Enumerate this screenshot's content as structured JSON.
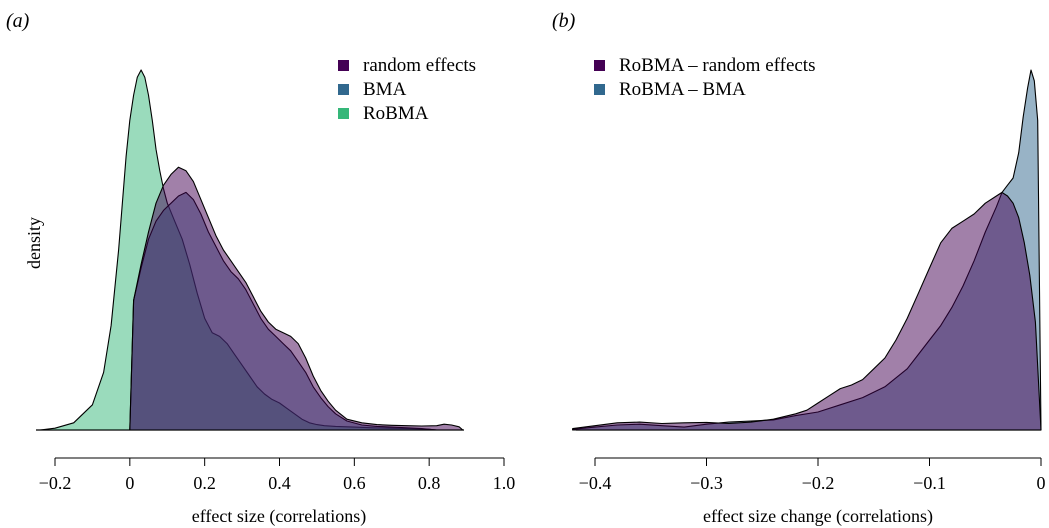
{
  "figure": {
    "panel_a_tag": "(a)",
    "panel_b_tag": "(b)"
  },
  "colors": {
    "random_effects": "#440154",
    "bma": "#31688e",
    "robma": "#35b779"
  },
  "chart_data": [
    {
      "type": "area",
      "panel": "(a)",
      "title": "",
      "xlabel": "effect size (correlations)",
      "ylabel": "density",
      "xlim": [
        -0.24,
        0.92
      ],
      "ylim": [
        0,
        1.05
      ],
      "x_ticks": [
        "−0.2",
        "0",
        "0.2",
        "0.4",
        "0.6",
        "0.8",
        "1.0"
      ],
      "x_tick_values": [
        -0.2,
        0,
        0.2,
        0.4,
        0.6,
        0.8,
        1.0
      ],
      "grid": false,
      "legend_position": "top-right",
      "series": [
        {
          "name": "random effects",
          "color": "#440154",
          "x": [
            0.0,
            0.01,
            0.03,
            0.05,
            0.07,
            0.09,
            0.11,
            0.13,
            0.15,
            0.17,
            0.19,
            0.21,
            0.23,
            0.25,
            0.27,
            0.29,
            0.31,
            0.33,
            0.35,
            0.37,
            0.39,
            0.41,
            0.43,
            0.45,
            0.47,
            0.49,
            0.51,
            0.53,
            0.55,
            0.58,
            0.62,
            0.66,
            0.7,
            0.74,
            0.78,
            0.82,
            0.84,
            0.86,
            0.88,
            0.89
          ],
          "y": [
            0.0,
            0.36,
            0.46,
            0.55,
            0.63,
            0.68,
            0.71,
            0.73,
            0.72,
            0.69,
            0.64,
            0.59,
            0.54,
            0.5,
            0.47,
            0.44,
            0.41,
            0.37,
            0.33,
            0.3,
            0.28,
            0.27,
            0.26,
            0.24,
            0.2,
            0.15,
            0.11,
            0.08,
            0.055,
            0.03,
            0.02,
            0.015,
            0.013,
            0.012,
            0.011,
            0.012,
            0.016,
            0.014,
            0.009,
            0.0
          ]
        },
        {
          "name": "BMA",
          "color": "#31688e",
          "x": [
            0.0,
            0.01,
            0.03,
            0.05,
            0.07,
            0.09,
            0.11,
            0.13,
            0.15,
            0.17,
            0.19,
            0.21,
            0.23,
            0.25,
            0.27,
            0.29,
            0.31,
            0.33,
            0.35,
            0.37,
            0.39,
            0.41,
            0.43,
            0.45,
            0.47,
            0.49,
            0.51,
            0.53,
            0.55,
            0.58,
            0.62,
            0.66,
            0.7,
            0.74,
            0.78,
            0.82
          ],
          "y": [
            0.0,
            0.36,
            0.45,
            0.53,
            0.58,
            0.61,
            0.63,
            0.65,
            0.66,
            0.64,
            0.6,
            0.55,
            0.51,
            0.47,
            0.44,
            0.42,
            0.39,
            0.35,
            0.31,
            0.28,
            0.26,
            0.24,
            0.22,
            0.19,
            0.16,
            0.12,
            0.09,
            0.065,
            0.045,
            0.025,
            0.014,
            0.01,
            0.008,
            0.006,
            0.004,
            0.0
          ]
        },
        {
          "name": "RoBMA",
          "color": "#35b779",
          "x": [
            -0.24,
            -0.2,
            -0.15,
            -0.1,
            -0.07,
            -0.05,
            -0.03,
            -0.01,
            0.0,
            0.01,
            0.02,
            0.03,
            0.04,
            0.05,
            0.06,
            0.07,
            0.08,
            0.09,
            0.1,
            0.12,
            0.14,
            0.16,
            0.18,
            0.2,
            0.22,
            0.24,
            0.26,
            0.28,
            0.3,
            0.32,
            0.34,
            0.36,
            0.38,
            0.4,
            0.42,
            0.44,
            0.46,
            0.48,
            0.5,
            0.52,
            0.55,
            0.6,
            0.65,
            0.7,
            0.75,
            0.8,
            0.82
          ],
          "y": [
            0.0,
            0.005,
            0.02,
            0.07,
            0.16,
            0.29,
            0.5,
            0.76,
            0.86,
            0.93,
            0.98,
            1.0,
            0.98,
            0.93,
            0.86,
            0.78,
            0.72,
            0.67,
            0.63,
            0.58,
            0.53,
            0.46,
            0.38,
            0.31,
            0.27,
            0.26,
            0.24,
            0.21,
            0.18,
            0.15,
            0.12,
            0.1,
            0.085,
            0.075,
            0.06,
            0.045,
            0.03,
            0.02,
            0.015,
            0.012,
            0.01,
            0.008,
            0.006,
            0.005,
            0.004,
            0.002,
            0.0
          ]
        }
      ]
    },
    {
      "type": "area",
      "panel": "(b)",
      "title": "",
      "xlabel": "effect size change (correlations)",
      "ylabel": "",
      "xlim": [
        -0.42,
        0.0
      ],
      "ylim": [
        0,
        1.05
      ],
      "x_ticks": [
        "−0.4",
        "−0.3",
        "−0.2",
        "−0.1",
        "0"
      ],
      "x_tick_values": [
        -0.4,
        -0.3,
        -0.2,
        -0.1,
        0.0
      ],
      "grid": false,
      "legend_position": "top-left",
      "series": [
        {
          "name": "RoBMA – BMA",
          "color": "#31688e",
          "x": [
            -0.42,
            -0.4,
            -0.38,
            -0.36,
            -0.34,
            -0.32,
            -0.3,
            -0.28,
            -0.26,
            -0.24,
            -0.22,
            -0.2,
            -0.18,
            -0.16,
            -0.14,
            -0.12,
            -0.11,
            -0.1,
            -0.09,
            -0.08,
            -0.07,
            -0.06,
            -0.05,
            -0.04,
            -0.035,
            -0.03,
            -0.025,
            -0.02,
            -0.016,
            -0.012,
            -0.009,
            -0.006,
            -0.003,
            0.0
          ],
          "y": [
            0.002,
            0.008,
            0.014,
            0.016,
            0.012,
            0.008,
            0.016,
            0.022,
            0.025,
            0.028,
            0.04,
            0.05,
            0.07,
            0.09,
            0.12,
            0.17,
            0.21,
            0.25,
            0.29,
            0.34,
            0.4,
            0.47,
            0.55,
            0.62,
            0.66,
            0.68,
            0.7,
            0.77,
            0.87,
            0.95,
            1.0,
            0.97,
            0.86,
            0.0
          ]
        },
        {
          "name": "RoBMA – random effects",
          "color": "#440154",
          "x": [
            -0.42,
            -0.4,
            -0.38,
            -0.36,
            -0.34,
            -0.32,
            -0.3,
            -0.28,
            -0.26,
            -0.24,
            -0.22,
            -0.21,
            -0.2,
            -0.19,
            -0.18,
            -0.17,
            -0.16,
            -0.15,
            -0.14,
            -0.13,
            -0.12,
            -0.11,
            -0.1,
            -0.09,
            -0.08,
            -0.07,
            -0.06,
            -0.05,
            -0.04,
            -0.035,
            -0.03,
            -0.025,
            -0.02,
            -0.015,
            -0.01,
            -0.005,
            0.0
          ],
          "y": [
            0.004,
            0.012,
            0.02,
            0.022,
            0.018,
            0.02,
            0.021,
            0.018,
            0.022,
            0.03,
            0.045,
            0.055,
            0.075,
            0.095,
            0.115,
            0.125,
            0.14,
            0.17,
            0.2,
            0.25,
            0.31,
            0.38,
            0.45,
            0.52,
            0.56,
            0.58,
            0.6,
            0.63,
            0.65,
            0.66,
            0.65,
            0.63,
            0.59,
            0.52,
            0.43,
            0.3,
            0.0
          ]
        }
      ]
    }
  ]
}
